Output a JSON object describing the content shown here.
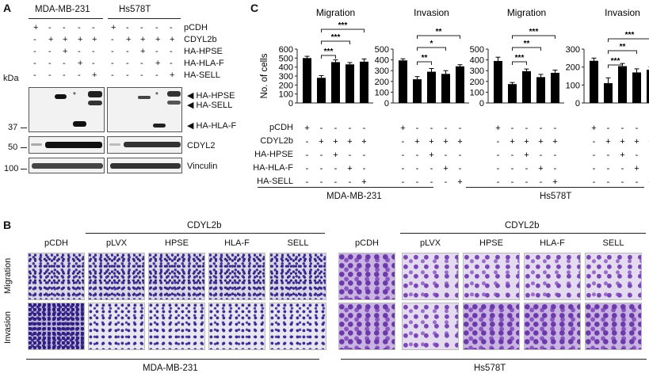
{
  "panel_a": {
    "letter": "A",
    "cell_line_1": "MDA-MB-231",
    "cell_line_2": "Hs578T",
    "row_labels": [
      "pCDH",
      "CDYL2b",
      "HA-HPSE",
      "HA-HLA-F",
      "HA-SELL"
    ],
    "signs": [
      [
        "+",
        "-",
        "-",
        "-",
        "-",
        "+",
        "-",
        "-",
        "-",
        "-"
      ],
      [
        "-",
        "+",
        "+",
        "+",
        "+",
        "-",
        "+",
        "+",
        "+",
        "+"
      ],
      [
        "-",
        "-",
        "+",
        "-",
        "-",
        "-",
        "-",
        "+",
        "-",
        "-"
      ],
      [
        "-",
        "-",
        "-",
        "+",
        "-",
        "-",
        "-",
        "-",
        "+",
        "-"
      ],
      [
        "-",
        "-",
        "-",
        "-",
        "+",
        "-",
        "-",
        "-",
        "-",
        "+"
      ]
    ],
    "kda_label": "kDa",
    "markers": [
      "37",
      "50",
      "100"
    ],
    "band_labels": [
      "HA-HPSE",
      "HA-SELL",
      "HA-HLA-F",
      "CDYL2",
      "Vinculin"
    ],
    "asterisk": "*"
  },
  "panel_b": {
    "letter": "B",
    "group_label": "CDYL2b",
    "columns": [
      "pCDH",
      "pLVX",
      "HPSE",
      "HLA-F",
      "SELL"
    ],
    "rows": [
      "Migration",
      "Invasion"
    ],
    "cell_lines": [
      "MDA-MB-231",
      "Hs578T"
    ]
  },
  "chart_data": [
    {
      "type": "bar",
      "title": "Migration",
      "ylabel": "No. of cells",
      "ylim": [
        0,
        600
      ],
      "yticks": [
        0,
        100,
        200,
        300,
        400,
        500,
        600
      ],
      "categories": [
        "pCDH",
        "CDYL2b",
        "CDYL2b+HA-HPSE",
        "CDYL2b+HA-HLA-F",
        "CDYL2b+HA-SELL"
      ],
      "values": [
        500,
        280,
        455,
        430,
        460
      ],
      "errors": [
        20,
        25,
        25,
        20,
        30
      ],
      "significance": [
        {
          "pair": [
            1,
            2
          ],
          "label": "***"
        },
        {
          "pair": [
            1,
            3
          ],
          "label": "***"
        },
        {
          "pair": [
            1,
            4
          ],
          "label": "***"
        }
      ]
    },
    {
      "type": "bar",
      "title": "Invasion",
      "ylim": [
        0,
        500
      ],
      "yticks": [
        0,
        100,
        200,
        300,
        400,
        500
      ],
      "categories": [
        "pCDH",
        "CDYL2b",
        "CDYL2b+HA-HPSE",
        "CDYL2b+HA-HLA-F",
        "CDYL2b+HA-SELL"
      ],
      "values": [
        395,
        220,
        290,
        270,
        340
      ],
      "errors": [
        15,
        25,
        30,
        30,
        15
      ],
      "significance": [
        {
          "pair": [
            1,
            2
          ],
          "label": "**"
        },
        {
          "pair": [
            1,
            3
          ],
          "label": "*"
        },
        {
          "pair": [
            1,
            4
          ],
          "label": "**"
        }
      ]
    },
    {
      "type": "bar",
      "title": "Migration",
      "ylim": [
        0,
        500
      ],
      "yticks": [
        0,
        100,
        200,
        300,
        400,
        500
      ],
      "categories": [
        "pCDH",
        "CDYL2b",
        "CDYL2b+HA-HPSE",
        "CDYL2b+HA-HLA-F",
        "CDYL2b+HA-SELL"
      ],
      "values": [
        390,
        175,
        295,
        240,
        280
      ],
      "errors": [
        35,
        15,
        20,
        25,
        25
      ],
      "significance": [
        {
          "pair": [
            1,
            2
          ],
          "label": "***"
        },
        {
          "pair": [
            1,
            3
          ],
          "label": "**"
        },
        {
          "pair": [
            1,
            4
          ],
          "label": "***"
        }
      ]
    },
    {
      "type": "bar",
      "title": "Invasion",
      "ylim": [
        0,
        300
      ],
      "yticks": [
        0,
        100,
        200,
        300
      ],
      "categories": [
        "pCDH",
        "CDYL2b",
        "CDYL2b+HA-HPSE",
        "CDYL2b+HA-HLA-F",
        "CDYL2b+HA-SELL"
      ],
      "values": [
        235,
        110,
        205,
        170,
        185
      ],
      "errors": [
        15,
        30,
        15,
        20,
        15
      ],
      "significance": [
        {
          "pair": [
            1,
            2
          ],
          "label": "***"
        },
        {
          "pair": [
            1,
            3
          ],
          "label": "**"
        },
        {
          "pair": [
            1,
            4
          ],
          "label": "***"
        }
      ]
    }
  ],
  "panel_c": {
    "letter": "C",
    "row_labels": [
      "pCDH",
      "CDYL2b",
      "HA-HPSE",
      "HA-HLA-F",
      "HA-SELL"
    ],
    "signs": [
      [
        "+",
        "-",
        "-",
        "-",
        "-"
      ],
      [
        "-",
        "+",
        "+",
        "+",
        "+"
      ],
      [
        "-",
        "-",
        "+",
        "-",
        "-"
      ],
      [
        "-",
        "-",
        "-",
        "+",
        "-"
      ],
      [
        "-",
        "-",
        "-",
        "-",
        "+"
      ]
    ],
    "cell_lines": [
      "MDA-MB-231",
      "Hs578T"
    ]
  }
}
